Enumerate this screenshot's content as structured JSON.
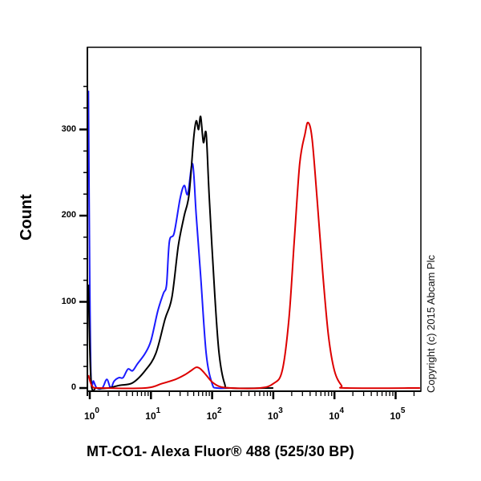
{
  "chart_data": {
    "type": "line",
    "title": "",
    "xlabel": "MT-CO1- Alexa Fluor® 488 (525/30 BP)",
    "ylabel": "Count",
    "x_scale": "log",
    "xlim": [
      0.9,
      250000
    ],
    "ylim": [
      0,
      350
    ],
    "y_ticks": [
      0,
      100,
      200,
      300
    ],
    "x_ticks": [
      {
        "base": "10",
        "exp": "0",
        "value": 1
      },
      {
        "base": "10",
        "exp": "1",
        "value": 10
      },
      {
        "base": "10",
        "exp": "2",
        "value": 100
      },
      {
        "base": "10",
        "exp": "3",
        "value": 1000
      },
      {
        "base": "10",
        "exp": "4",
        "value": 10000
      },
      {
        "base": "10",
        "exp": "5",
        "value": 100000
      }
    ],
    "grid": false,
    "legend": null,
    "annotation": "Copyright (c) 2015 Abcam Plc",
    "series": [
      {
        "name": "Blue histogram",
        "color": "#1a1aff",
        "points": [
          [
            0.95,
            345
          ],
          [
            1.0,
            120
          ],
          [
            1.05,
            10
          ],
          [
            1.15,
            8
          ],
          [
            1.3,
            0
          ],
          [
            1.6,
            0
          ],
          [
            1.9,
            10
          ],
          [
            2.2,
            0
          ],
          [
            2.5,
            8
          ],
          [
            3.0,
            12
          ],
          [
            3.5,
            12
          ],
          [
            4.2,
            22
          ],
          [
            5,
            20
          ],
          [
            6,
            28
          ],
          [
            8,
            40
          ],
          [
            10,
            55
          ],
          [
            13,
            90
          ],
          [
            16,
            110
          ],
          [
            18,
            120
          ],
          [
            20,
            170
          ],
          [
            24,
            180
          ],
          [
            30,
            220
          ],
          [
            35,
            235
          ],
          [
            40,
            225
          ],
          [
            48,
            260
          ],
          [
            55,
            200
          ],
          [
            65,
            130
          ],
          [
            80,
            40
          ],
          [
            100,
            5
          ],
          [
            120,
            0
          ],
          [
            200,
            0
          ]
        ]
      },
      {
        "name": "Black histogram",
        "color": "#000000",
        "points": [
          [
            0.95,
            120
          ],
          [
            1.05,
            8
          ],
          [
            1.3,
            0
          ],
          [
            2,
            0
          ],
          [
            3,
            3
          ],
          [
            5,
            6
          ],
          [
            8,
            20
          ],
          [
            12,
            40
          ],
          [
            17,
            80
          ],
          [
            22,
            105
          ],
          [
            28,
            165
          ],
          [
            35,
            200
          ],
          [
            42,
            225
          ],
          [
            50,
            290
          ],
          [
            55,
            310
          ],
          [
            60,
            300
          ],
          [
            65,
            315
          ],
          [
            72,
            285
          ],
          [
            80,
            295
          ],
          [
            90,
            220
          ],
          [
            110,
            110
          ],
          [
            130,
            40
          ],
          [
            160,
            5
          ],
          [
            200,
            0
          ],
          [
            1000,
            0
          ]
        ]
      },
      {
        "name": "Red histogram",
        "color": "#dd0000",
        "points": [
          [
            0.95,
            15
          ],
          [
            1.1,
            2
          ],
          [
            1.5,
            0
          ],
          [
            8,
            0
          ],
          [
            15,
            5
          ],
          [
            25,
            10
          ],
          [
            35,
            15
          ],
          [
            45,
            20
          ],
          [
            55,
            24
          ],
          [
            65,
            22
          ],
          [
            80,
            15
          ],
          [
            100,
            7
          ],
          [
            130,
            2
          ],
          [
            200,
            0
          ],
          [
            600,
            0
          ],
          [
            1000,
            5
          ],
          [
            1400,
            20
          ],
          [
            1800,
            80
          ],
          [
            2200,
            170
          ],
          [
            2700,
            260
          ],
          [
            3300,
            295
          ],
          [
            3700,
            308
          ],
          [
            4300,
            290
          ],
          [
            5200,
            220
          ],
          [
            6500,
            130
          ],
          [
            8000,
            60
          ],
          [
            10000,
            20
          ],
          [
            13000,
            3
          ],
          [
            16000,
            0
          ],
          [
            250000,
            0
          ]
        ]
      }
    ]
  },
  "labels": {
    "ylabel": "Count",
    "xlabel": "MT-CO1- Alexa Fluor® 488 (525/30 BP)",
    "copyright": "Copyright (c) 2015 Abcam Plc",
    "yticks": [
      "0",
      "100",
      "200",
      "300"
    ],
    "xtick_base": "10",
    "xtick_exps": [
      "0",
      "1",
      "2",
      "3",
      "4",
      "5"
    ]
  }
}
